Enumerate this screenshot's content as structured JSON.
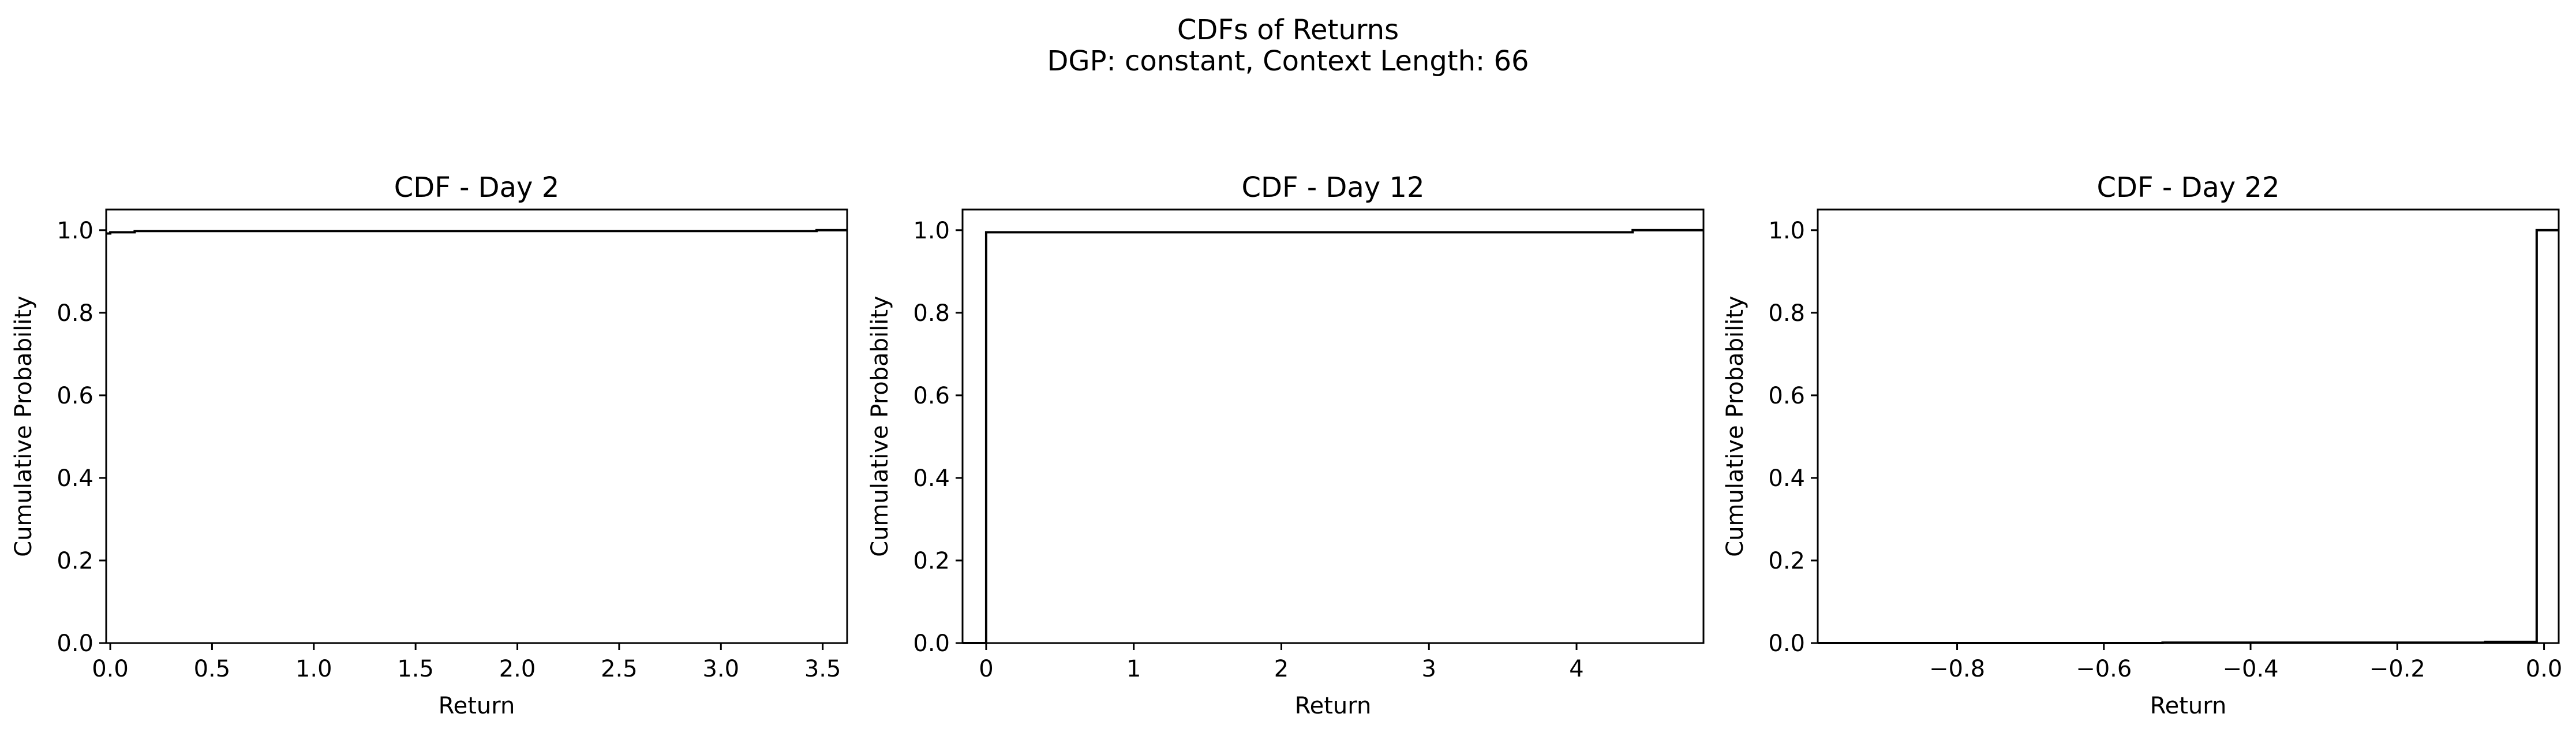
{
  "figure": {
    "suptitle_line1": "CDFs of Returns",
    "suptitle_line2": "DGP: constant, Context Length: 66"
  },
  "chart_data": [
    {
      "type": "line",
      "title": "CDF - Day 2",
      "xlabel": "Return",
      "ylabel": "Cumulative Probability",
      "xlim": [
        -0.02,
        3.62
      ],
      "ylim": [
        0,
        1.05
      ],
      "xticks": [
        0.0,
        0.5,
        1.0,
        1.5,
        2.0,
        2.5,
        3.0,
        3.5
      ],
      "xtick_labels": [
        "0.0",
        "0.5",
        "1.0",
        "1.5",
        "2.0",
        "2.5",
        "3.0",
        "3.5"
      ],
      "yticks": [
        0.0,
        0.2,
        0.4,
        0.6,
        0.8,
        1.0
      ],
      "ytick_labels": [
        "0.0",
        "0.2",
        "0.4",
        "0.6",
        "0.8",
        "1.0"
      ],
      "series": [
        {
          "color": "#000000",
          "step": true,
          "x": [
            -0.02,
            0.0,
            0.12,
            3.47,
            3.62
          ],
          "y": [
            0.992,
            0.995,
            0.998,
            1.0,
            1.0
          ]
        }
      ]
    },
    {
      "type": "line",
      "title": "CDF - Day 12",
      "xlabel": "Return",
      "ylabel": "Cumulative Probability",
      "xlim": [
        -0.16,
        4.86
      ],
      "ylim": [
        0,
        1.05
      ],
      "xticks": [
        0,
        1,
        2,
        3,
        4
      ],
      "xtick_labels": [
        "0",
        "1",
        "2",
        "3",
        "4"
      ],
      "yticks": [
        0.0,
        0.2,
        0.4,
        0.6,
        0.8,
        1.0
      ],
      "ytick_labels": [
        "0.0",
        "0.2",
        "0.4",
        "0.6",
        "0.8",
        "1.0"
      ],
      "series": [
        {
          "color": "#000000",
          "step": true,
          "x": [
            -0.16,
            0.0,
            4.38,
            4.86
          ],
          "y": [
            0.0,
            0.995,
            1.0,
            1.0
          ]
        }
      ]
    },
    {
      "type": "line",
      "title": "CDF - Day 22",
      "xlabel": "Return",
      "ylabel": "Cumulative Probability",
      "xlim": [
        -0.99,
        0.02
      ],
      "ylim": [
        0,
        1.05
      ],
      "xticks": [
        -0.8,
        -0.6,
        -0.4,
        -0.2,
        0.0
      ],
      "xtick_labels": [
        "−0.8",
        "−0.6",
        "−0.4",
        "−0.2",
        "0.0"
      ],
      "yticks": [
        0.0,
        0.2,
        0.4,
        0.6,
        0.8,
        1.0
      ],
      "ytick_labels": [
        "0.0",
        "0.2",
        "0.4",
        "0.6",
        "0.8",
        "1.0"
      ],
      "series": [
        {
          "color": "#000000",
          "step": true,
          "x": [
            -0.99,
            -0.52,
            -0.08,
            -0.01,
            0.02
          ],
          "y": [
            0.0,
            0.001,
            0.003,
            1.0,
            1.0
          ]
        }
      ]
    }
  ]
}
